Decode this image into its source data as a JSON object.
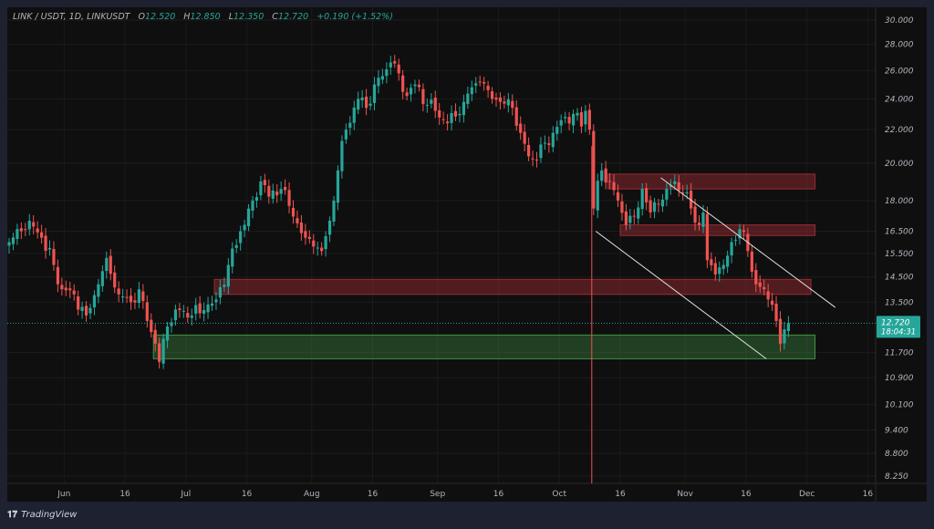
{
  "header": {
    "symbol": "LINK / USDT, 1D, LINKUSDT",
    "open_label": "O",
    "open": "12.520",
    "high_label": "H",
    "high": "12.850",
    "low_label": "L",
    "low": "12.350",
    "close_label": "C",
    "close": "12.720",
    "change": "+0.190 (+1.52%)"
  },
  "footer": {
    "brand": "TradingView",
    "logo_icon": "tradingview-logo-icon"
  },
  "colors": {
    "up": "#26a69a",
    "down": "#ef5350",
    "zone_red": "#b2303a",
    "zone_green": "#4caf50",
    "line": "#e0e0e0",
    "bg": "#0f0f0f"
  },
  "chart_data": {
    "type": "candlestick",
    "title": "LINK / USDT, 1D",
    "y_scale": "log",
    "ylim": [
      8.25,
      30
    ],
    "start_date": "2024-05-18",
    "y_ticks": [
      "30.000",
      "28.000",
      "26.000",
      "24.000",
      "22.000",
      "20.000",
      "18.000",
      "16.500",
      "15.500",
      "14.500",
      "13.500",
      "11.700",
      "10.900",
      "10.100",
      "9.400",
      "8.800",
      "8.250"
    ],
    "x_ticks": [
      [
        "Jun",
        14
      ],
      [
        "16",
        29
      ],
      [
        "Jul",
        44
      ],
      [
        "16",
        59
      ],
      [
        "Aug",
        75
      ],
      [
        "16",
        90
      ],
      [
        "Sep",
        106
      ],
      [
        "16",
        121
      ],
      [
        "Oct",
        136
      ],
      [
        "16",
        151
      ],
      [
        "Nov",
        167
      ],
      [
        "16",
        182
      ],
      [
        "Dec",
        197
      ],
      [
        "16",
        212
      ]
    ],
    "last_price": {
      "value": 12.72,
      "label": "12.720",
      "countdown": "18:04:31"
    },
    "close_keypoints_by_day": [
      [
        0,
        16.0
      ],
      [
        3,
        16.5
      ],
      [
        5,
        17.0
      ],
      [
        8,
        16.2
      ],
      [
        11,
        15.0
      ],
      [
        13,
        14.0
      ],
      [
        16,
        13.8
      ],
      [
        19,
        13.0
      ],
      [
        22,
        14.2
      ],
      [
        24,
        15.3
      ],
      [
        27,
        13.8
      ],
      [
        30,
        13.5
      ],
      [
        32,
        14.0
      ],
      [
        34,
        12.8
      ],
      [
        36,
        12.0
      ],
      [
        37,
        11.4
      ],
      [
        39,
        12.6
      ],
      [
        42,
        13.2
      ],
      [
        45,
        13.0
      ],
      [
        48,
        13.2
      ],
      [
        51,
        13.6
      ],
      [
        54,
        15.0
      ],
      [
        57,
        16.5
      ],
      [
        60,
        18.0
      ],
      [
        62,
        19.0
      ],
      [
        64,
        18.2
      ],
      [
        67,
        18.6
      ],
      [
        70,
        17.2
      ],
      [
        73,
        16.2
      ],
      [
        75,
        15.8
      ],
      [
        77,
        15.6
      ],
      [
        79,
        17.0
      ],
      [
        81,
        19.6
      ],
      [
        83,
        22.0
      ],
      [
        86,
        24.0
      ],
      [
        88,
        23.4
      ],
      [
        90,
        25.0
      ],
      [
        92,
        25.6
      ],
      [
        94,
        26.6
      ],
      [
        96,
        25.8
      ],
      [
        98,
        24.2
      ],
      [
        100,
        25.0
      ],
      [
        103,
        23.6
      ],
      [
        105,
        23.2
      ],
      [
        108,
        22.4
      ],
      [
        111,
        23.0
      ],
      [
        114,
        24.8
      ],
      [
        116,
        25.2
      ],
      [
        118,
        24.6
      ],
      [
        121,
        23.8
      ],
      [
        124,
        23.4
      ],
      [
        126,
        21.8
      ],
      [
        128,
        20.4
      ],
      [
        130,
        20.2
      ],
      [
        132,
        21.2
      ],
      [
        134,
        21.8
      ],
      [
        137,
        22.8
      ],
      [
        139,
        23.0
      ],
      [
        141,
        22.2
      ],
      [
        142,
        23.2
      ],
      [
        143,
        22.0
      ],
      [
        144,
        17.6
      ],
      [
        146,
        19.6
      ],
      [
        148,
        19.0
      ],
      [
        150,
        18.0
      ],
      [
        152,
        16.8
      ],
      [
        154,
        17.2
      ],
      [
        156,
        18.6
      ],
      [
        158,
        17.4
      ],
      [
        160,
        17.8
      ],
      [
        162,
        18.6
      ],
      [
        164,
        19.0
      ],
      [
        166,
        18.4
      ],
      [
        168,
        17.6
      ],
      [
        170,
        16.8
      ],
      [
        171,
        17.4
      ],
      [
        172,
        15.2
      ],
      [
        174,
        14.6
      ],
      [
        176,
        15.0
      ],
      [
        178,
        16.0
      ],
      [
        180,
        16.6
      ],
      [
        182,
        15.6
      ],
      [
        184,
        14.2
      ],
      [
        186,
        14.0
      ],
      [
        188,
        13.4
      ],
      [
        189,
        12.8
      ],
      [
        190,
        12.0
      ],
      [
        191,
        12.5
      ],
      [
        192,
        12.72
      ]
    ]
  },
  "zones": [
    {
      "kind": "red",
      "from_day": 148,
      "to_day": 199,
      "low": 18.6,
      "high": 19.4
    },
    {
      "kind": "red",
      "from_day": 151,
      "to_day": 199,
      "low": 16.3,
      "high": 16.8
    },
    {
      "kind": "red",
      "from_day": 51,
      "to_day": 198,
      "low": 13.8,
      "high": 14.4
    },
    {
      "kind": "green",
      "from_day": 36,
      "to_day": 199,
      "low": 11.5,
      "high": 12.3
    }
  ],
  "event_line_day": 144,
  "channel": {
    "upper": [
      [
        161,
        19.2
      ],
      [
        204,
        13.3
      ]
    ],
    "lower": [
      [
        145,
        16.5
      ],
      [
        187,
        11.5
      ]
    ]
  }
}
